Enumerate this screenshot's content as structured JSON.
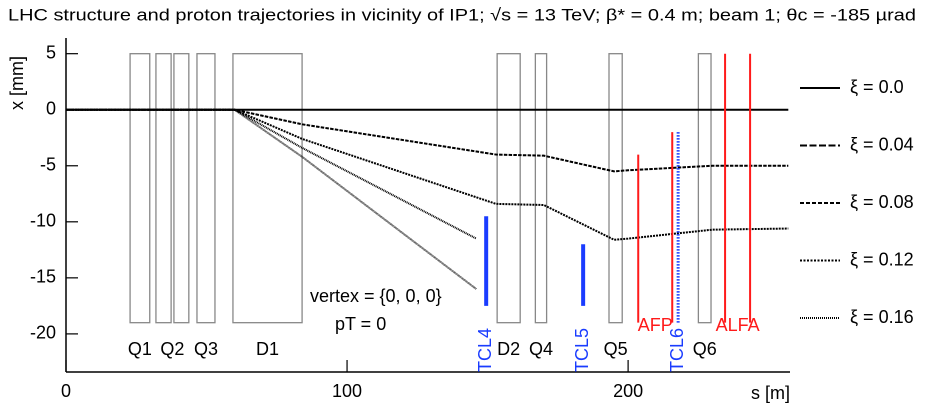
{
  "chart_data": {
    "type": "line",
    "title": "LHC structure and proton trajectories in vicinity of IP1; √s = 13 TeV; β* = 0.4 m; beam 1; θc = -185 µrad",
    "xlabel": "s [m]",
    "ylabel": "x [mm]",
    "xlim": [
      0,
      257.6
    ],
    "ylim": [
      -23.4,
      6.4
    ],
    "xticks": [
      0,
      100,
      200
    ],
    "yticks": [
      5,
      0,
      -5,
      -10,
      -15,
      -20
    ],
    "series": [
      {
        "name": "ξ = 0.0",
        "color": "#000000",
        "dash": "none",
        "x": [
          0,
          257
        ],
        "values": [
          0,
          0
        ]
      },
      {
        "name": "ξ = 0.04",
        "color": "#000000",
        "dash": "14 5",
        "x": [
          0,
          60,
          84,
          153,
          170,
          195,
          200,
          230,
          257
        ],
        "values": [
          0,
          0,
          -1.3,
          -4,
          -4.1,
          -5.5,
          -5.4,
          -5.0,
          -5.0
        ]
      },
      {
        "name": "ξ = 0.08",
        "color": "#000000",
        "dash": "8 4",
        "x": [
          0,
          60,
          84,
          153,
          170,
          195,
          200,
          230,
          257
        ],
        "values": [
          0,
          0,
          -2.6,
          -8.4,
          -8.5,
          -11.6,
          -11.5,
          -10.7,
          -10.6
        ]
      },
      {
        "name": "ξ = 0.12",
        "color": "#000000",
        "dash": "4 3",
        "x": [
          0,
          60,
          84,
          146
        ],
        "values": [
          0,
          0,
          -3.4,
          -11.5
        ]
      },
      {
        "name": "ξ = 0.16",
        "color": "#000000",
        "dash": "2 2",
        "x": [
          0,
          60,
          84,
          146
        ],
        "values": [
          0,
          0,
          -4.2,
          -16
        ]
      }
    ],
    "magnet_x_range": [
      -19,
      5
    ],
    "magnets": [
      {
        "label": "Q1",
        "s": [
          [
            22.8,
            29.8
          ]
        ]
      },
      {
        "label": "Q2",
        "s": [
          [
            32.0,
            37.4
          ],
          [
            38.4,
            43.7
          ]
        ]
      },
      {
        "label": "Q3",
        "s": [
          [
            46.6,
            53.0
          ]
        ]
      },
      {
        "label": "D1",
        "s": [
          [
            59.4,
            84.0
          ]
        ]
      },
      {
        "label": "D2",
        "s": [
          [
            153.4,
            161.6
          ]
        ]
      },
      {
        "label": "Q4",
        "s": [
          [
            167.0,
            171.0
          ]
        ]
      },
      {
        "label": "Q5",
        "s": [
          [
            193.2,
            197.9
          ]
        ]
      },
      {
        "label": "Q6",
        "s": [
          [
            225.0,
            229.5
          ]
        ]
      }
    ],
    "collimators": [
      {
        "label": "TCL4",
        "color": "#1a3cff",
        "dotted": false,
        "s": 149.5,
        "x": [
          -9.5,
          -17.5
        ]
      },
      {
        "label": "TCL5",
        "color": "#1a3cff",
        "dotted": false,
        "s": 184.0,
        "x": [
          -12,
          -17.5
        ]
      },
      {
        "label": "TCL6",
        "color": "#1a3cff",
        "dotted": true,
        "s": 217.8,
        "x": [
          -2,
          -19
        ]
      }
    ],
    "detectors": [
      {
        "label": "AFP",
        "color": "#ff1a1a",
        "stations": [
          {
            "s": 203.6,
            "x": [
              -4,
              -19
            ]
          },
          {
            "s": 215.7,
            "x": [
              -2,
              -19
            ]
          }
        ]
      },
      {
        "label": "ALFA",
        "color": "#ff1a1a",
        "stations": [
          {
            "s": 234.5,
            "x": [
              5,
              -19
            ]
          },
          {
            "s": 243.4,
            "x": [
              5,
              -19
            ]
          }
        ]
      }
    ],
    "annotations": [
      "vertex = {0, 0, 0}",
      "pT = 0"
    ]
  }
}
